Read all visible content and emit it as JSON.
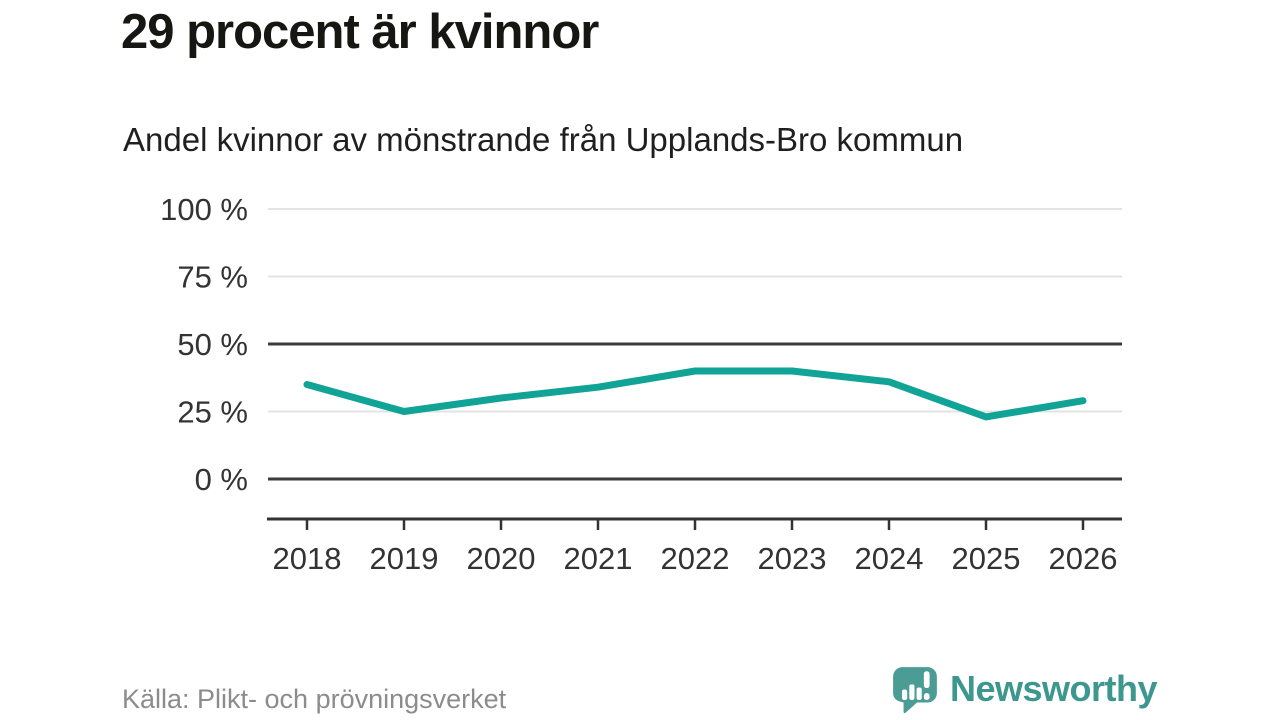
{
  "chart_data": {
    "type": "line",
    "title": "29 procent är kvinnor",
    "subtitle": "Andel kvinnor av mönstrande från Upplands-Bro kommun",
    "x": [
      2018,
      2019,
      2020,
      2021,
      2022,
      2023,
      2024,
      2025,
      2026
    ],
    "series": [
      {
        "name": "Andel kvinnor av mönstrande",
        "values": [
          35,
          25,
          30,
          34,
          40,
          40,
          36,
          23,
          29
        ]
      }
    ],
    "unit": "%",
    "xlabel": "",
    "ylabel": "",
    "ylim": [
      0,
      100
    ],
    "y_ticks": [
      100,
      75,
      50,
      25,
      0
    ],
    "y_tick_suffix": " %",
    "emphasized_gridlines": [
      50,
      0
    ],
    "grid": "horizontal-only",
    "legend": "none",
    "line_color": "#11A396",
    "grid_color": "#E3E3E3",
    "axis_color": "#3A3A3A",
    "tick_label_color": "#333333"
  },
  "footer": {
    "source": "Källa: Plikt- och prövningsverket",
    "brand": "Newsworthy",
    "brand_color": "#3E978F",
    "logo_color": "#4A9C95",
    "logo_icon": "speech-bubble-bar-chart-exclamation-icon"
  }
}
